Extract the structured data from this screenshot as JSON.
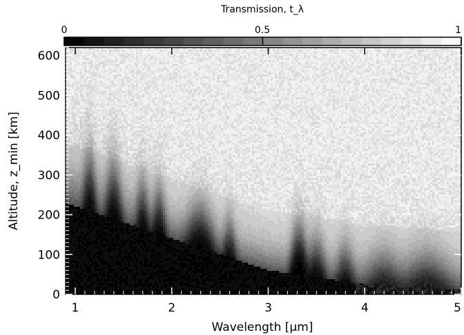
{
  "chart_data": {
    "type": "heatmap",
    "title": "",
    "xlabel": "Wavelength [μm]",
    "ylabel": "Altitude, z_min [km]",
    "colorbar": {
      "label": "Transmission, t_λ",
      "range": [
        0,
        1
      ],
      "tick_labels": [
        "0",
        "0.5",
        "1"
      ],
      "colormap": "grayscale (black = 0, white = 1)"
    },
    "xlim": [
      0.9,
      5.0
    ],
    "ylim": [
      0,
      620
    ],
    "x_ticks": [
      1,
      2,
      3,
      4,
      5
    ],
    "y_ticks": [
      0,
      100,
      200,
      300,
      400,
      500,
      600
    ],
    "absorption_features": [
      {
        "wavelength": 1.15,
        "strength": 0.8,
        "width": 0.06
      },
      {
        "wavelength": 1.4,
        "strength": 0.9,
        "width": 0.07
      },
      {
        "wavelength": 1.7,
        "strength": 0.7,
        "width": 0.06
      },
      {
        "wavelength": 1.87,
        "strength": 0.8,
        "width": 0.06
      },
      {
        "wavelength": 2.3,
        "strength": 1.0,
        "width": 0.12
      },
      {
        "wavelength": 2.6,
        "strength": 0.6,
        "width": 0.06
      },
      {
        "wavelength": 3.32,
        "strength": 1.7,
        "width": 0.07
      },
      {
        "wavelength": 3.5,
        "strength": 0.7,
        "width": 0.08
      },
      {
        "wavelength": 3.8,
        "strength": 0.5,
        "width": 0.08
      },
      {
        "wavelength": 4.2,
        "strength": 0.4,
        "width": 0.15
      },
      {
        "wavelength": 4.65,
        "strength": 0.5,
        "width": 0.2
      }
    ],
    "continuum_opaque_altitude_km": [
      {
        "wavelength": 0.9,
        "altitude": 230
      },
      {
        "wavelength": 2.0,
        "altitude": 140
      },
      {
        "wavelength": 3.0,
        "altitude": 60
      },
      {
        "wavelength": 4.0,
        "altitude": 25
      },
      {
        "wavelength": 5.0,
        "altitude": 10
      }
    ]
  }
}
